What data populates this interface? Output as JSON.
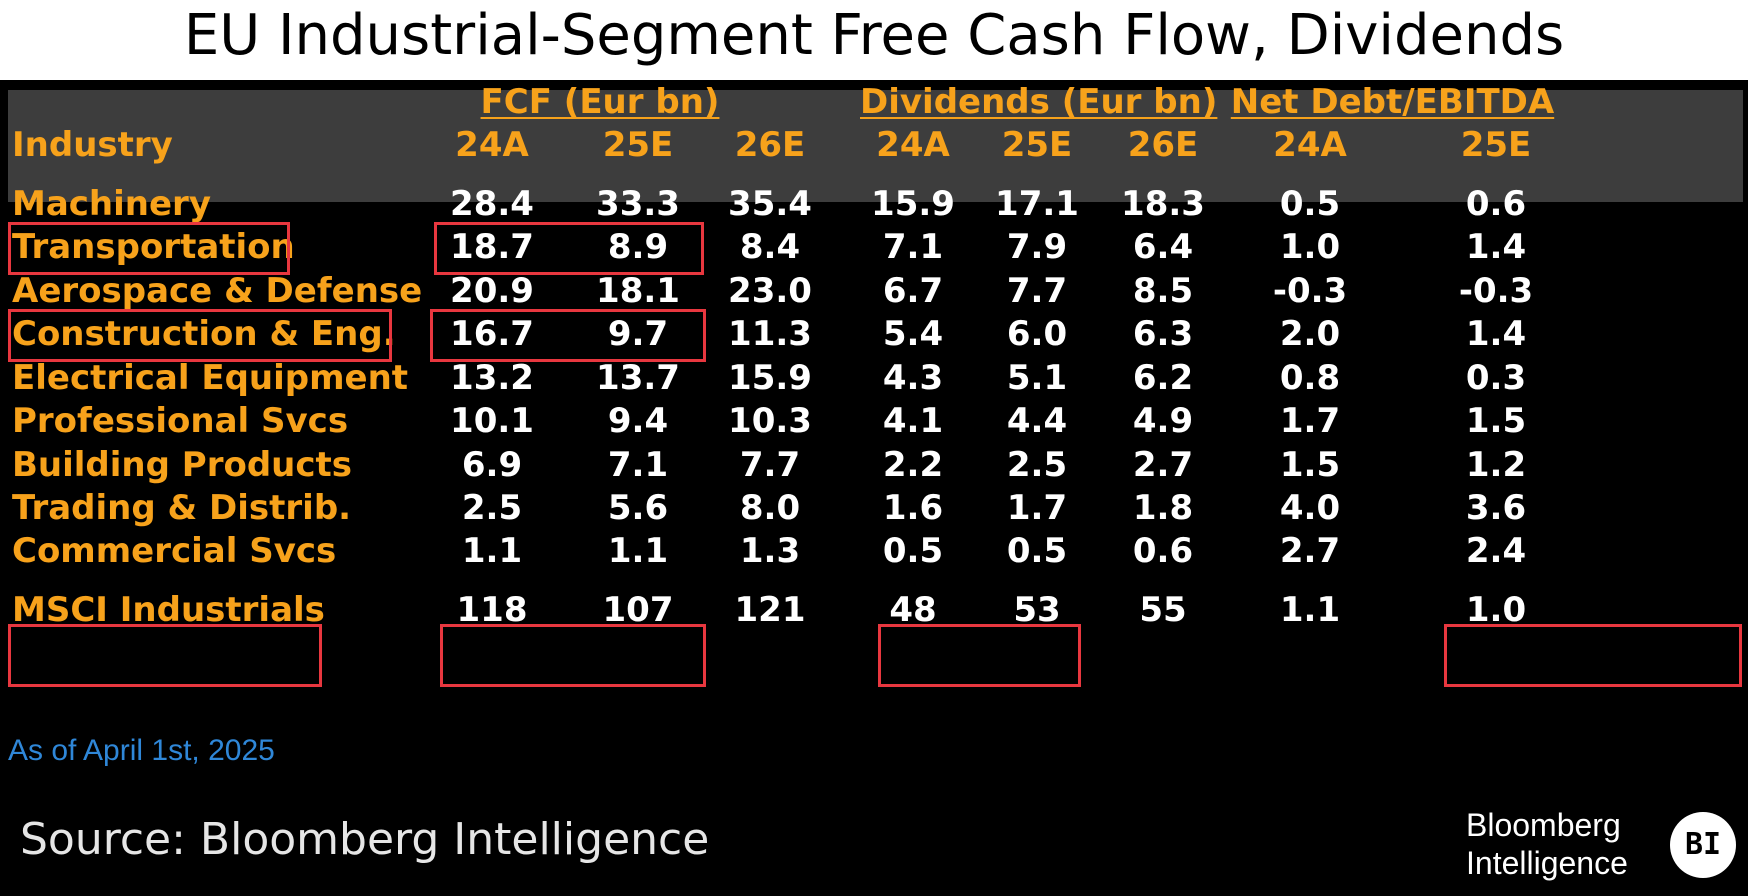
{
  "chart_data": {
    "type": "table",
    "title": "EU Industrial-Segment Free Cash Flow, Dividends",
    "column_groups": [
      {
        "label": "FCF (Eur bn)",
        "columns": [
          "24A",
          "25E",
          "26E"
        ]
      },
      {
        "label": "Dividends (Eur bn)",
        "columns": [
          "24A",
          "25E",
          "26E"
        ]
      },
      {
        "label": "Net Debt/EBITDA",
        "columns": [
          "24A",
          "25E"
        ]
      }
    ],
    "row_header": "Industry",
    "rows": [
      {
        "industry": "Machinery",
        "values": [
          "28.4",
          "33.3",
          "35.4",
          "15.9",
          "17.1",
          "18.3",
          "0.5",
          "0.6"
        ]
      },
      {
        "industry": "Transportation",
        "values": [
          "18.7",
          "8.9",
          "8.4",
          "7.1",
          "7.9",
          "6.4",
          "1.0",
          "1.4"
        ]
      },
      {
        "industry": "Aerospace & Defense",
        "values": [
          "20.9",
          "18.1",
          "23.0",
          "6.7",
          "7.7",
          "8.5",
          "-0.3",
          "-0.3"
        ]
      },
      {
        "industry": "Construction & Eng.",
        "values": [
          "16.7",
          "9.7",
          "11.3",
          "5.4",
          "6.0",
          "6.3",
          "2.0",
          "1.4"
        ]
      },
      {
        "industry": "Electrical Equipment",
        "values": [
          "13.2",
          "13.7",
          "15.9",
          "4.3",
          "5.1",
          "6.2",
          "0.8",
          "0.3"
        ]
      },
      {
        "industry": "Professional Svcs",
        "values": [
          "10.1",
          "9.4",
          "10.3",
          "4.1",
          "4.4",
          "4.9",
          "1.7",
          "1.5"
        ]
      },
      {
        "industry": "Building Products",
        "values": [
          "6.9",
          "7.1",
          "7.7",
          "2.2",
          "2.5",
          "2.7",
          "1.5",
          "1.2"
        ]
      },
      {
        "industry": "Trading & Distrib.",
        "values": [
          "2.5",
          "5.6",
          "8.0",
          "1.6",
          "1.7",
          "1.8",
          "4.0",
          "3.6"
        ]
      },
      {
        "industry": "Commercial Svcs",
        "values": [
          "1.1",
          "1.1",
          "1.3",
          "0.5",
          "0.5",
          "0.6",
          "2.7",
          "2.4"
        ]
      }
    ],
    "total_row": {
      "industry": "MSCI Industrials",
      "values": [
        "118",
        "107",
        "121",
        "48",
        "53",
        "55",
        "1.1",
        "1.0"
      ]
    },
    "highlighted": [
      {
        "row": "Transportation",
        "columns": [
          "industry",
          "FCF 24A",
          "FCF 25E"
        ]
      },
      {
        "row": "Construction & Eng.",
        "columns": [
          "industry",
          "FCF 24A",
          "FCF 25E"
        ]
      },
      {
        "row": "MSCI Industrials",
        "columns": [
          "industry",
          "FCF 24A",
          "FCF 25E",
          "Dividends 24A",
          "Dividends 25E",
          "Net Debt/EBITDA 25E"
        ]
      }
    ],
    "note": "As of April 1st, 2025",
    "source": "Source: Bloomberg Intelligence"
  },
  "colors": {
    "background": "#000000",
    "header_band": "#3d3d3d",
    "header_text": "#f7a21b",
    "industry_text": "#f7a21b",
    "value_text": "#ffffff",
    "highlight_border": "#e8373f",
    "note_text": "#2f87d8"
  },
  "logo": {
    "line1": "Bloomberg",
    "line2": "Intelligence",
    "badge": "BI"
  }
}
